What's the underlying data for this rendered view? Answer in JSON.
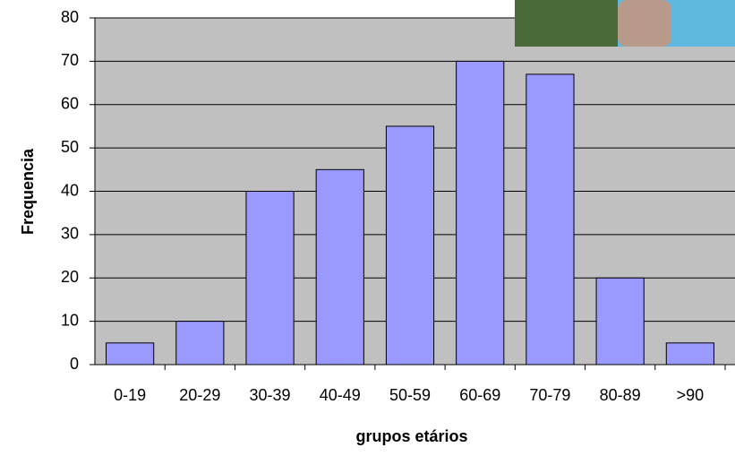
{
  "chart_data": {
    "type": "bar",
    "x_label": "grupos etários",
    "y_label": "Frequencia",
    "categories": [
      "0-19",
      "20-29",
      "30-39",
      "40-49",
      "50-59",
      "60-69",
      "70-79",
      "80-89",
      ">90"
    ],
    "values": [
      5,
      10,
      40,
      45,
      55,
      70,
      67,
      20,
      5
    ],
    "color": "#9999ff",
    "ylim": [
      0,
      80
    ],
    "yticks": [
      0,
      10,
      20,
      30,
      40,
      50,
      60,
      70,
      80
    ],
    "grid": true
  }
}
